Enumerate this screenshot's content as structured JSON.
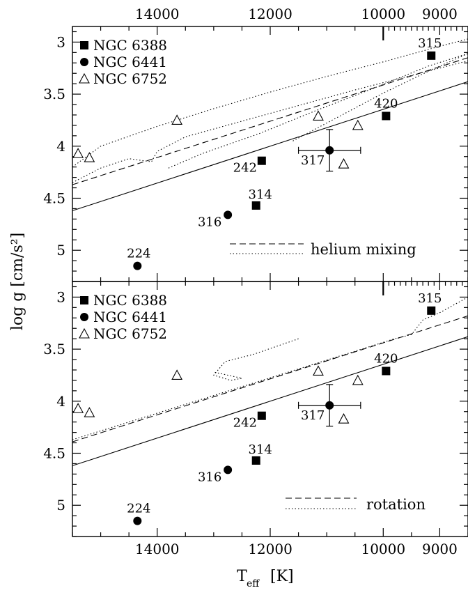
{
  "chart_data": {
    "type": "scatter",
    "xlabel_main": "T",
    "xlabel_sub": "eff",
    "xlabel_unit": "[K]",
    "ylabel": "log g [cm/s²]",
    "xlim": [
      15500,
      8500
    ],
    "ylim": [
      5.3,
      2.85
    ],
    "x_ticks": [
      14000,
      12000,
      10000,
      9000
    ],
    "x_tick_labels": [
      "14000",
      "12000",
      "10000",
      "9000"
    ],
    "y_tick_labels_top": [
      "3",
      "3.5",
      "4",
      "4.5",
      "5"
    ],
    "y_tick_labels_bottom": [
      "3",
      "3.5",
      "4",
      "4.5",
      "5"
    ],
    "legend": [
      "NGC 6388",
      "NGC 6441",
      "NGC 6752"
    ],
    "panels": [
      {
        "id": "top",
        "legend_lines": [
          "",
          "helium mixing"
        ],
        "points": [
          {
            "cluster": "NGC 6388",
            "marker": "square",
            "label": "315",
            "x": 9150,
            "y": 3.13
          },
          {
            "cluster": "NGC 6388",
            "marker": "square",
            "label": "420",
            "x": 9950,
            "y": 3.71
          },
          {
            "cluster": "NGC 6388",
            "marker": "square",
            "label": "242",
            "x": 12150,
            "y": 4.14
          },
          {
            "cluster": "NGC 6388",
            "marker": "square",
            "label": "314",
            "x": 12250,
            "y": 4.57
          },
          {
            "cluster": "NGC 6441",
            "marker": "circle",
            "label": "317",
            "x": 10950,
            "y": 4.04,
            "xerr": 550,
            "yerr": 0.2
          },
          {
            "cluster": "NGC 6441",
            "marker": "circle",
            "label": "316",
            "x": 12750,
            "y": 4.66
          },
          {
            "cluster": "NGC 6441",
            "marker": "circle",
            "label": "224",
            "x": 14350,
            "y": 5.15
          },
          {
            "cluster": "NGC 6752",
            "marker": "triangle",
            "label": "",
            "x": 15400,
            "y": 4.07
          },
          {
            "cluster": "NGC 6752",
            "marker": "triangle",
            "label": "",
            "x": 15200,
            "y": 4.11
          },
          {
            "cluster": "NGC 6752",
            "marker": "triangle",
            "label": "",
            "x": 13650,
            "y": 3.75
          },
          {
            "cluster": "NGC 6752",
            "marker": "triangle",
            "label": "",
            "x": 11150,
            "y": 3.71
          },
          {
            "cluster": "NGC 6752",
            "marker": "triangle",
            "label": "",
            "x": 10700,
            "y": 4.17
          },
          {
            "cluster": "NGC 6752",
            "marker": "triangle",
            "label": "",
            "x": 10450,
            "y": 3.8
          }
        ],
        "curves": [
          {
            "style": "solid",
            "x": [
              15500,
              8500
            ],
            "y": [
              4.62,
              3.38
            ]
          },
          {
            "style": "dashed",
            "x": [
              15500,
              8500
            ],
            "y": [
              4.37,
              3.15
            ]
          },
          {
            "style": "dotted",
            "x": [
              15500,
              15000,
              14000,
              13000,
              12000,
              11000,
              10000,
              9000,
              8500
            ],
            "y": [
              4.2,
              4.0,
              3.81,
              3.64,
              3.48,
              3.33,
              3.19,
              3.04,
              2.97
            ]
          },
          {
            "style": "dotted",
            "x": [
              15500,
              15000,
              14500,
              14100,
              14000,
              13500,
              12500,
              11500,
              10500,
              9500,
              8500
            ],
            "y": [
              4.35,
              4.21,
              4.12,
              4.15,
              4.05,
              3.91,
              3.76,
              3.61,
              3.46,
              3.32,
              3.18
            ]
          },
          {
            "style": "dotted",
            "x": [
              13800,
              13200,
              12200,
              11200,
              10200,
              9200,
              8500
            ],
            "y": [
              4.21,
              4.07,
              3.88,
              3.66,
              3.45,
              3.23,
              3.11
            ]
          },
          {
            "style": "dotted",
            "x": [
              11600,
              10800,
              10000,
              9200,
              8500
            ],
            "y": [
              3.95,
              3.72,
              3.49,
              3.28,
              3.11
            ]
          }
        ]
      },
      {
        "id": "bottom",
        "legend_lines": [
          "",
          "rotation"
        ],
        "points": [
          {
            "cluster": "NGC 6388",
            "marker": "square",
            "label": "315",
            "x": 9150,
            "y": 3.13
          },
          {
            "cluster": "NGC 6388",
            "marker": "square",
            "label": "420",
            "x": 9950,
            "y": 3.71
          },
          {
            "cluster": "NGC 6388",
            "marker": "square",
            "label": "242",
            "x": 12150,
            "y": 4.14
          },
          {
            "cluster": "NGC 6388",
            "marker": "square",
            "label": "314",
            "x": 12250,
            "y": 4.57
          },
          {
            "cluster": "NGC 6441",
            "marker": "circle",
            "label": "317",
            "x": 10950,
            "y": 4.04,
            "xerr": 550,
            "yerr": 0.2
          },
          {
            "cluster": "NGC 6441",
            "marker": "circle",
            "label": "316",
            "x": 12750,
            "y": 4.66
          },
          {
            "cluster": "NGC 6441",
            "marker": "circle",
            "label": "224",
            "x": 14350,
            "y": 5.15
          },
          {
            "cluster": "NGC 6752",
            "marker": "triangle",
            "label": "",
            "x": 15400,
            "y": 4.07
          },
          {
            "cluster": "NGC 6752",
            "marker": "triangle",
            "label": "",
            "x": 15200,
            "y": 4.11
          },
          {
            "cluster": "NGC 6752",
            "marker": "triangle",
            "label": "",
            "x": 13650,
            "y": 3.75
          },
          {
            "cluster": "NGC 6752",
            "marker": "triangle",
            "label": "",
            "x": 11150,
            "y": 3.71
          },
          {
            "cluster": "NGC 6752",
            "marker": "triangle",
            "label": "",
            "x": 10700,
            "y": 4.17
          },
          {
            "cluster": "NGC 6752",
            "marker": "triangle",
            "label": "",
            "x": 10450,
            "y": 3.8
          }
        ],
        "curves": [
          {
            "style": "solid",
            "x": [
              15500,
              8500
            ],
            "y": [
              4.62,
              3.38
            ]
          },
          {
            "style": "dashed",
            "x": [
              15500,
              8500
            ],
            "y": [
              4.39,
              3.18
            ]
          },
          {
            "style": "dotted",
            "x": [
              15500,
              14500,
              13500,
              12500,
              11500,
              10500,
              9800,
              9500,
              9300,
              9000,
              8500
            ],
            "y": [
              4.37,
              4.2,
              4.03,
              3.86,
              3.69,
              3.52,
              3.4,
              3.36,
              3.22,
              3.15,
              3.0
            ]
          },
          {
            "style": "dotted",
            "x": [
              11500,
              12300,
              12800,
              13000,
              12700,
              12500,
              13000
            ],
            "y": [
              3.4,
              3.55,
              3.62,
              3.75,
              3.8,
              3.78,
              3.72
            ]
          }
        ]
      }
    ]
  }
}
